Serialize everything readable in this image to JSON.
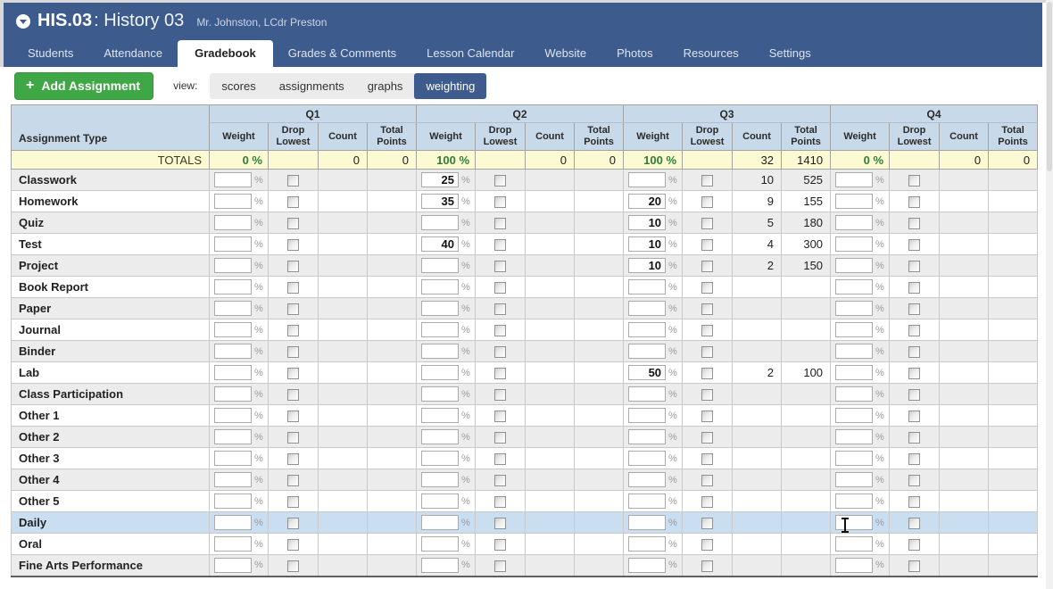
{
  "header": {
    "course_code": "HIS.03",
    "course_name": ": History 03",
    "teachers": "Mr. Johnston, LCdr Preston",
    "tabs": [
      "Students",
      "Attendance",
      "Gradebook",
      "Grades & Comments",
      "Lesson Calendar",
      "Website",
      "Photos",
      "Resources",
      "Settings"
    ],
    "active_tab": "Gradebook"
  },
  "toolbar": {
    "add_button_label": "Add Assignment",
    "plus_icon": "+",
    "view_label": "view:",
    "views": [
      "scores",
      "assignments",
      "graphs",
      "weighting"
    ],
    "active_view": "weighting"
  },
  "table": {
    "corner_header": "Assignment Type",
    "quarters": [
      "Q1",
      "Q2",
      "Q3",
      "Q4"
    ],
    "sub_headers": [
      "Weight",
      "Drop Lowest",
      "Count",
      "Total Points"
    ],
    "percent_sign": "%",
    "totals_label": "TOTALS",
    "totals": [
      {
        "weight": "0 %",
        "count": "0",
        "points": "0"
      },
      {
        "weight": "100 %",
        "count": "0",
        "points": "0"
      },
      {
        "weight": "100 %",
        "count": "32",
        "points": "1410"
      },
      {
        "weight": "0 %",
        "count": "0",
        "points": "0"
      }
    ],
    "rows": [
      {
        "label": "Classwork",
        "quarters": [
          {
            "weight": "",
            "count": "",
            "points": ""
          },
          {
            "weight": "25",
            "count": "",
            "points": ""
          },
          {
            "weight": "",
            "count": "10",
            "points": "525"
          },
          {
            "weight": "",
            "count": "",
            "points": ""
          }
        ]
      },
      {
        "label": "Homework",
        "quarters": [
          {
            "weight": "",
            "count": "",
            "points": ""
          },
          {
            "weight": "35",
            "count": "",
            "points": ""
          },
          {
            "weight": "20",
            "count": "9",
            "points": "155"
          },
          {
            "weight": "",
            "count": "",
            "points": ""
          }
        ]
      },
      {
        "label": "Quiz",
        "quarters": [
          {
            "weight": "",
            "count": "",
            "points": ""
          },
          {
            "weight": "",
            "count": "",
            "points": ""
          },
          {
            "weight": "10",
            "count": "5",
            "points": "180"
          },
          {
            "weight": "",
            "count": "",
            "points": ""
          }
        ]
      },
      {
        "label": "Test",
        "quarters": [
          {
            "weight": "",
            "count": "",
            "points": ""
          },
          {
            "weight": "40",
            "count": "",
            "points": ""
          },
          {
            "weight": "10",
            "count": "4",
            "points": "300"
          },
          {
            "weight": "",
            "count": "",
            "points": ""
          }
        ]
      },
      {
        "label": "Project",
        "quarters": [
          {
            "weight": "",
            "count": "",
            "points": ""
          },
          {
            "weight": "",
            "count": "",
            "points": ""
          },
          {
            "weight": "10",
            "count": "2",
            "points": "150"
          },
          {
            "weight": "",
            "count": "",
            "points": ""
          }
        ]
      },
      {
        "label": "Book Report",
        "quarters": [
          {
            "weight": "",
            "count": "",
            "points": ""
          },
          {
            "weight": "",
            "count": "",
            "points": ""
          },
          {
            "weight": "",
            "count": "",
            "points": ""
          },
          {
            "weight": "",
            "count": "",
            "points": ""
          }
        ]
      },
      {
        "label": "Paper",
        "quarters": [
          {
            "weight": "",
            "count": "",
            "points": ""
          },
          {
            "weight": "",
            "count": "",
            "points": ""
          },
          {
            "weight": "",
            "count": "",
            "points": ""
          },
          {
            "weight": "",
            "count": "",
            "points": ""
          }
        ]
      },
      {
        "label": "Journal",
        "quarters": [
          {
            "weight": "",
            "count": "",
            "points": ""
          },
          {
            "weight": "",
            "count": "",
            "points": ""
          },
          {
            "weight": "",
            "count": "",
            "points": ""
          },
          {
            "weight": "",
            "count": "",
            "points": ""
          }
        ]
      },
      {
        "label": "Binder",
        "quarters": [
          {
            "weight": "",
            "count": "",
            "points": ""
          },
          {
            "weight": "",
            "count": "",
            "points": ""
          },
          {
            "weight": "",
            "count": "",
            "points": ""
          },
          {
            "weight": "",
            "count": "",
            "points": ""
          }
        ]
      },
      {
        "label": "Lab",
        "quarters": [
          {
            "weight": "",
            "count": "",
            "points": ""
          },
          {
            "weight": "",
            "count": "",
            "points": ""
          },
          {
            "weight": "50",
            "count": "2",
            "points": "100"
          },
          {
            "weight": "",
            "count": "",
            "points": ""
          }
        ]
      },
      {
        "label": "Class Participation",
        "quarters": [
          {
            "weight": "",
            "count": "",
            "points": ""
          },
          {
            "weight": "",
            "count": "",
            "points": ""
          },
          {
            "weight": "",
            "count": "",
            "points": ""
          },
          {
            "weight": "",
            "count": "",
            "points": ""
          }
        ]
      },
      {
        "label": "Other 1",
        "quarters": [
          {
            "weight": "",
            "count": "",
            "points": ""
          },
          {
            "weight": "",
            "count": "",
            "points": ""
          },
          {
            "weight": "",
            "count": "",
            "points": ""
          },
          {
            "weight": "",
            "count": "",
            "points": ""
          }
        ]
      },
      {
        "label": "Other 2",
        "quarters": [
          {
            "weight": "",
            "count": "",
            "points": ""
          },
          {
            "weight": "",
            "count": "",
            "points": ""
          },
          {
            "weight": "",
            "count": "",
            "points": ""
          },
          {
            "weight": "",
            "count": "",
            "points": ""
          }
        ]
      },
      {
        "label": "Other 3",
        "quarters": [
          {
            "weight": "",
            "count": "",
            "points": ""
          },
          {
            "weight": "",
            "count": "",
            "points": ""
          },
          {
            "weight": "",
            "count": "",
            "points": ""
          },
          {
            "weight": "",
            "count": "",
            "points": ""
          }
        ]
      },
      {
        "label": "Other 4",
        "quarters": [
          {
            "weight": "",
            "count": "",
            "points": ""
          },
          {
            "weight": "",
            "count": "",
            "points": ""
          },
          {
            "weight": "",
            "count": "",
            "points": ""
          },
          {
            "weight": "",
            "count": "",
            "points": ""
          }
        ]
      },
      {
        "label": "Other 5",
        "quarters": [
          {
            "weight": "",
            "count": "",
            "points": ""
          },
          {
            "weight": "",
            "count": "",
            "points": ""
          },
          {
            "weight": "",
            "count": "",
            "points": ""
          },
          {
            "weight": "",
            "count": "",
            "points": ""
          }
        ]
      },
      {
        "label": "Daily",
        "highlighted": true,
        "quarters": [
          {
            "weight": "",
            "count": "",
            "points": ""
          },
          {
            "weight": "",
            "count": "",
            "points": ""
          },
          {
            "weight": "",
            "count": "",
            "points": ""
          },
          {
            "weight": "",
            "count": "",
            "points": ""
          }
        ]
      },
      {
        "label": "Oral",
        "quarters": [
          {
            "weight": "",
            "count": "",
            "points": ""
          },
          {
            "weight": "",
            "count": "",
            "points": ""
          },
          {
            "weight": "",
            "count": "",
            "points": ""
          },
          {
            "weight": "",
            "count": "",
            "points": ""
          }
        ]
      },
      {
        "label": "Fine Arts Performance",
        "quarters": [
          {
            "weight": "",
            "count": "",
            "points": ""
          },
          {
            "weight": "",
            "count": "",
            "points": ""
          },
          {
            "weight": "",
            "count": "",
            "points": ""
          },
          {
            "weight": "",
            "count": "",
            "points": ""
          }
        ]
      }
    ]
  },
  "colors": {
    "header_blue": "#3d5b8d",
    "add_button_green": "#3fa746",
    "table_header_blue": "#c8daea",
    "totals_yellow": "#fbfad2",
    "totals_green": "#2f7d32",
    "row_gray": "#ececec",
    "row_highlight": "#c9def0"
  }
}
